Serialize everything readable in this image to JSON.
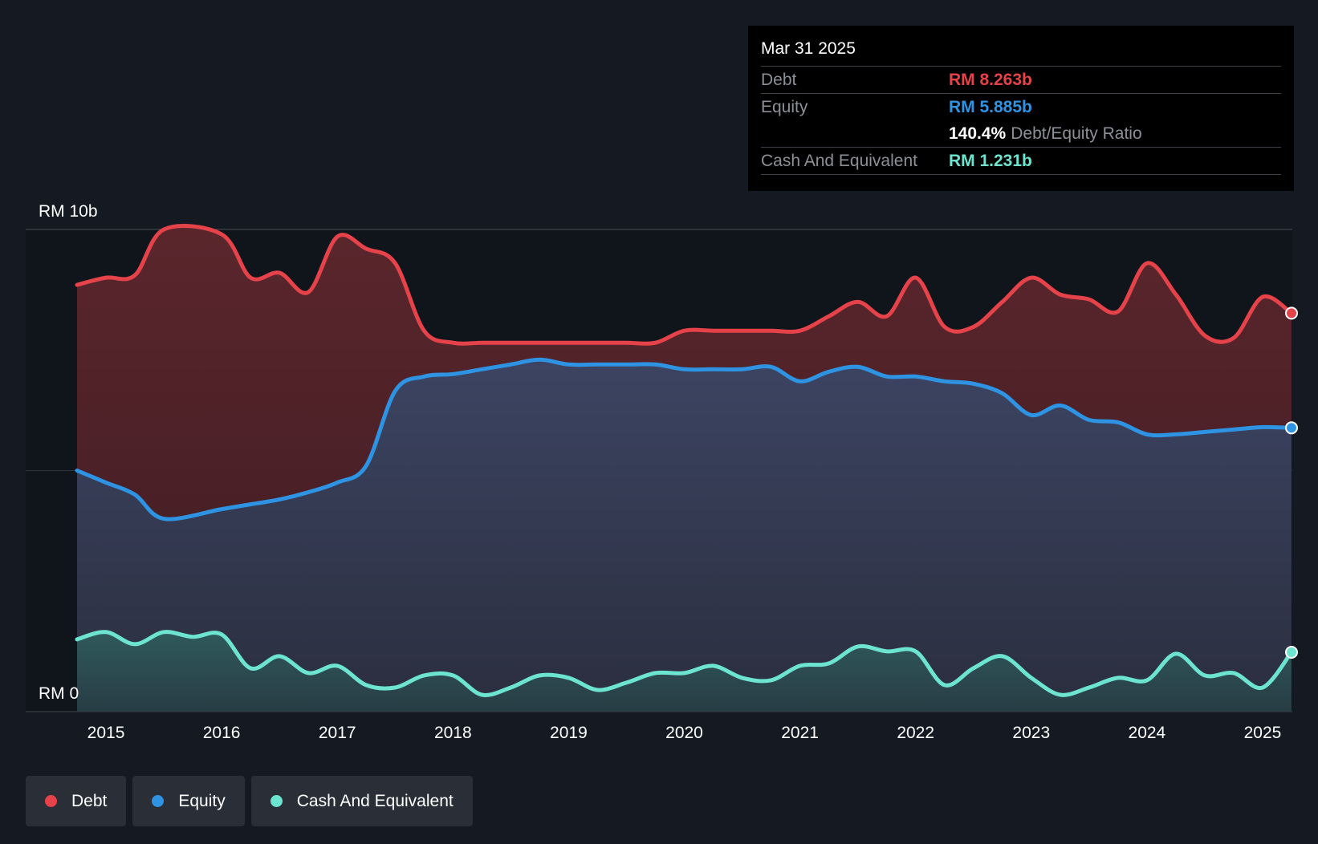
{
  "colors": {
    "debt": "#e5424a",
    "equity": "#2e93e2",
    "cash": "#6ce4cf",
    "background": "#151a22",
    "plot_bg": "#10141b"
  },
  "chart_data": {
    "type": "area",
    "title": "",
    "xlabel": "",
    "ylabel": "",
    "y_unit": "RM b",
    "ylim": [
      0,
      10
    ],
    "y_tick_labels": [
      {
        "value": 10,
        "label": "RM 10b"
      },
      {
        "value": 0,
        "label": "RM 0"
      }
    ],
    "x_ticks": [
      2015,
      2016,
      2017,
      2018,
      2019,
      2020,
      2021,
      2022,
      2023,
      2024,
      2025
    ],
    "xlim": [
      2014.75,
      2025.25
    ],
    "grid": true,
    "legend_position": "bottom-left",
    "series": [
      {
        "name": "Debt",
        "key": "debt",
        "x": [
          2014.75,
          2015.0,
          2015.25,
          2015.5,
          2016.0,
          2016.25,
          2016.5,
          2016.75,
          2017.0,
          2017.25,
          2017.5,
          2017.75,
          2018.0,
          2018.25,
          2018.5,
          2018.75,
          2019.0,
          2019.25,
          2019.5,
          2019.75,
          2020.0,
          2020.25,
          2020.5,
          2020.75,
          2021.0,
          2021.25,
          2021.5,
          2021.75,
          2022.0,
          2022.25,
          2022.5,
          2022.75,
          2023.0,
          2023.25,
          2023.5,
          2023.75,
          2024.0,
          2024.25,
          2024.5,
          2024.75,
          2025.0,
          2025.25
        ],
        "values": [
          8.85,
          9.0,
          9.05,
          10.0,
          9.9,
          9.0,
          9.1,
          8.7,
          9.85,
          9.6,
          9.3,
          7.9,
          7.65,
          7.65,
          7.65,
          7.65,
          7.65,
          7.65,
          7.65,
          7.65,
          7.9,
          7.9,
          7.9,
          7.9,
          7.9,
          8.2,
          8.5,
          8.2,
          9.0,
          7.98,
          7.98,
          8.5,
          9.0,
          8.65,
          8.55,
          8.3,
          9.3,
          8.65,
          7.8,
          7.75,
          8.6,
          8.263
        ]
      },
      {
        "name": "Equity",
        "key": "equity",
        "x": [
          2014.75,
          2015.0,
          2015.25,
          2015.5,
          2016.0,
          2016.25,
          2016.5,
          2016.75,
          2017.0,
          2017.25,
          2017.5,
          2017.75,
          2018.0,
          2018.25,
          2018.5,
          2018.75,
          2019.0,
          2019.25,
          2019.5,
          2019.75,
          2020.0,
          2020.25,
          2020.5,
          2020.75,
          2021.0,
          2021.25,
          2021.5,
          2021.75,
          2022.0,
          2022.25,
          2022.5,
          2022.75,
          2023.0,
          2023.25,
          2023.5,
          2023.75,
          2024.0,
          2024.25,
          2024.5,
          2024.75,
          2025.0,
          2025.25
        ],
        "values": [
          5.0,
          4.75,
          4.5,
          4.0,
          4.2,
          4.3,
          4.4,
          4.55,
          4.75,
          5.1,
          6.65,
          6.95,
          7.0,
          7.1,
          7.2,
          7.3,
          7.2,
          7.2,
          7.2,
          7.2,
          7.1,
          7.1,
          7.1,
          7.15,
          6.85,
          7.05,
          7.15,
          6.95,
          6.95,
          6.85,
          6.8,
          6.6,
          6.15,
          6.35,
          6.05,
          6.0,
          5.75,
          5.75,
          5.8,
          5.85,
          5.9,
          5.885
        ]
      },
      {
        "name": "Cash And Equivalent",
        "key": "cash",
        "x": [
          2014.75,
          2015.0,
          2015.25,
          2015.5,
          2015.75,
          2016.0,
          2016.25,
          2016.5,
          2016.75,
          2017.0,
          2017.25,
          2017.5,
          2017.75,
          2018.0,
          2018.25,
          2018.5,
          2018.75,
          2019.0,
          2019.25,
          2019.5,
          2019.75,
          2020.0,
          2020.25,
          2020.5,
          2020.75,
          2021.0,
          2021.25,
          2021.5,
          2021.75,
          2022.0,
          2022.25,
          2022.5,
          2022.75,
          2023.0,
          2023.25,
          2023.5,
          2023.75,
          2024.0,
          2024.25,
          2024.5,
          2024.75,
          2025.0,
          2025.25
        ],
        "values": [
          1.5,
          1.65,
          1.4,
          1.65,
          1.55,
          1.6,
          0.9,
          1.15,
          0.8,
          0.95,
          0.55,
          0.5,
          0.75,
          0.75,
          0.35,
          0.5,
          0.75,
          0.7,
          0.45,
          0.6,
          0.8,
          0.8,
          0.95,
          0.7,
          0.65,
          0.95,
          1.0,
          1.35,
          1.25,
          1.25,
          0.55,
          0.9,
          1.15,
          0.7,
          0.35,
          0.5,
          0.7,
          0.65,
          1.2,
          0.75,
          0.8,
          0.5,
          1.231
        ]
      }
    ]
  },
  "tooltip": {
    "date": "Mar 31 2025",
    "debt_label": "Debt",
    "debt_value": "RM 8.263b",
    "equity_label": "Equity",
    "equity_value": "RM 5.885b",
    "ratio_value": "140.4%",
    "ratio_label": "Debt/Equity Ratio",
    "cash_label": "Cash And Equivalent",
    "cash_value": "RM 1.231b"
  },
  "legend": [
    {
      "label": "Debt",
      "key": "debt"
    },
    {
      "label": "Equity",
      "key": "equity"
    },
    {
      "label": "Cash And Equivalent",
      "key": "cash"
    }
  ]
}
